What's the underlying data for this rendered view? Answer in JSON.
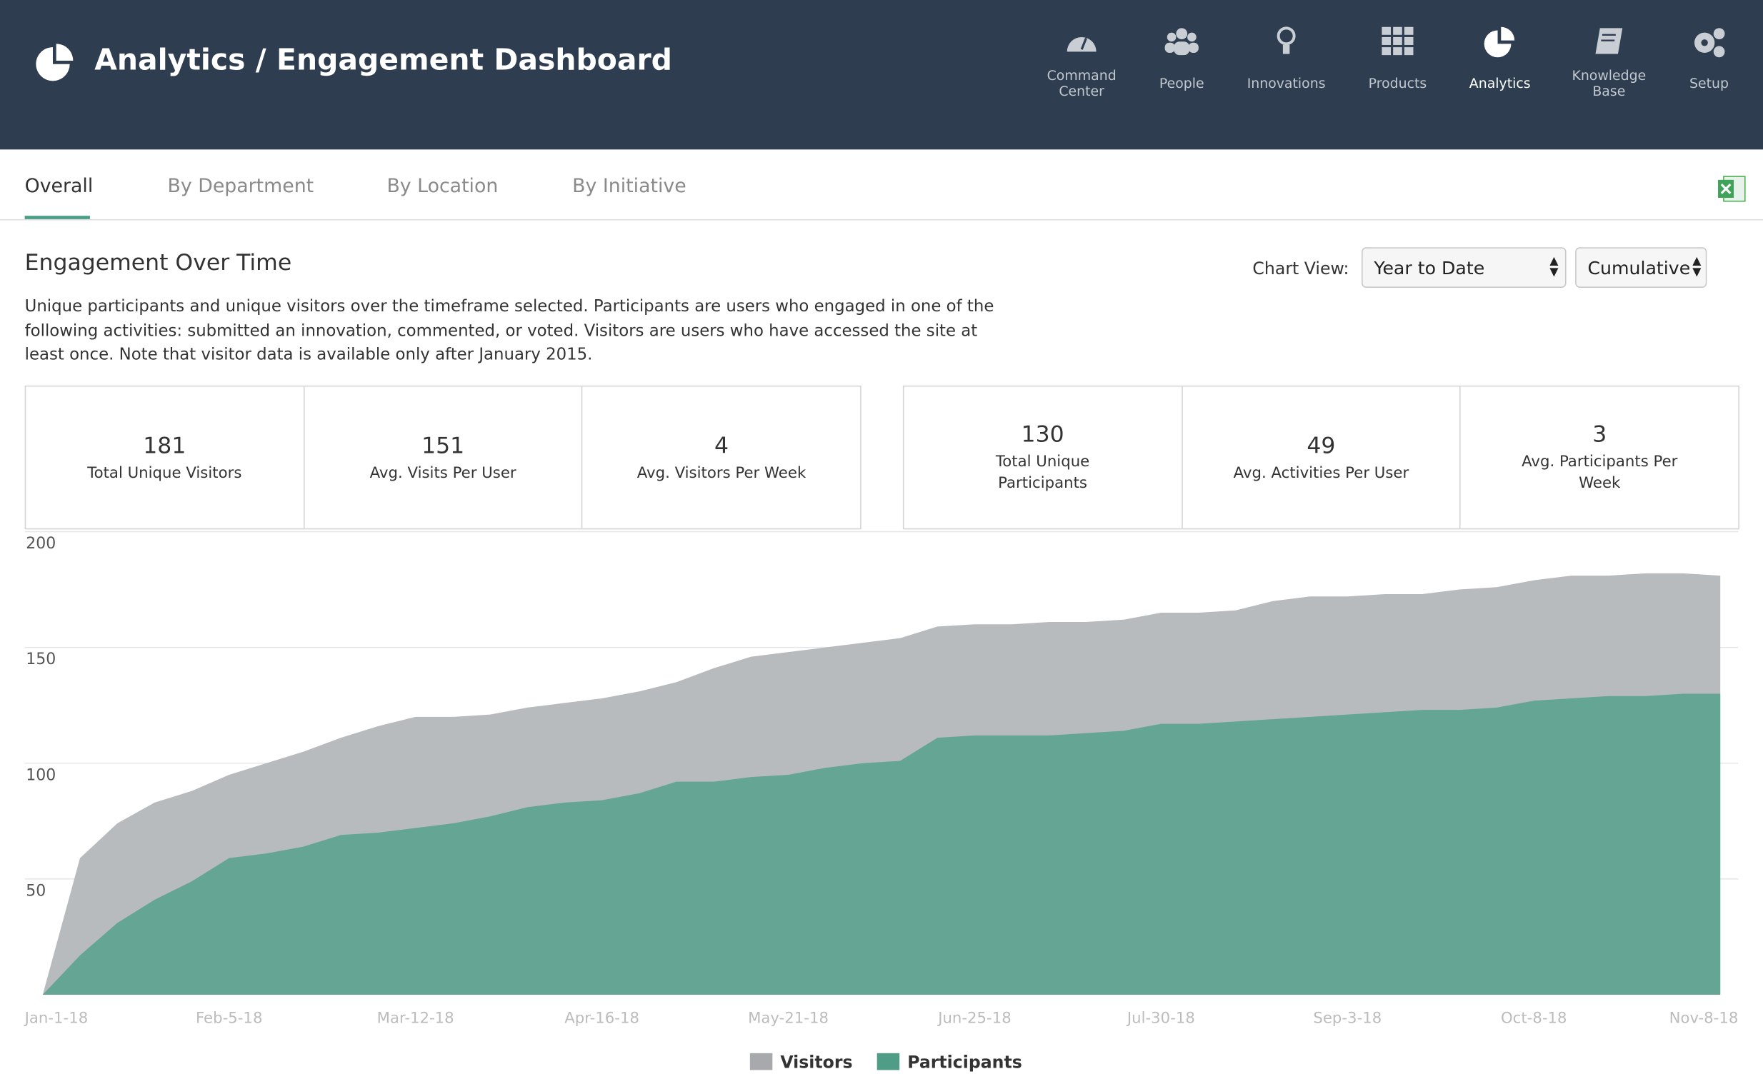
{
  "header": {
    "title": "Analytics / Engagement Dashboard",
    "nav": [
      {
        "label": "Command Center"
      },
      {
        "label": "People"
      },
      {
        "label": "Innovations"
      },
      {
        "label": "Products"
      },
      {
        "label": "Analytics"
      },
      {
        "label": "Knowledge Base"
      },
      {
        "label": "Setup"
      }
    ]
  },
  "tabs": [
    "Overall",
    "By Department",
    "By Location",
    "By Initiative"
  ],
  "section": {
    "title": "Engagement Over Time",
    "description": "Unique participants and unique visitors over the timeframe selected. Participants are users who engaged in one of the following activities: submitted an innovation, commented, or voted. Visitors are users who have accessed the site at least once. Note that visitor data is available only after January 2015.",
    "chart_view_label": "Chart View:",
    "range_select": "Year to Date",
    "mode_select": "Cumulative"
  },
  "stats": [
    [
      {
        "value": "181",
        "label": "Total Unique Visitors"
      },
      {
        "value": "151",
        "label": "Avg. Visits Per User"
      },
      {
        "value": "4",
        "label": "Avg. Visitors Per Week"
      }
    ],
    [
      {
        "value": "130",
        "label": "Total Unique Participants"
      },
      {
        "value": "49",
        "label": "Avg. Activities Per User"
      },
      {
        "value": "3",
        "label": "Avg. Participants Per Week"
      }
    ]
  ],
  "chart_data": {
    "type": "area",
    "categories": [
      "Jan-1-18",
      null,
      null,
      null,
      null,
      "Feb-5-18",
      null,
      null,
      null,
      null,
      "Mar-12-18",
      null,
      null,
      null,
      null,
      "Apr-16-18",
      null,
      null,
      null,
      null,
      "May-21-18",
      null,
      null,
      null,
      null,
      "Jun-25-18",
      null,
      null,
      null,
      null,
      "Jul-30-18",
      null,
      null,
      null,
      null,
      "Sep-3-18",
      null,
      null,
      null,
      null,
      "Oct-8-18",
      null,
      null,
      null,
      null,
      "Nov-8-18"
    ],
    "series": [
      {
        "name": "Visitors",
        "color": "#b8bbbe",
        "legend_color": "#a7a9ac",
        "values": [
          0,
          59,
          74,
          83,
          88,
          95,
          100,
          105,
          111,
          116,
          120,
          120,
          121,
          124,
          126,
          128,
          131,
          135,
          141,
          146,
          148,
          150,
          152,
          154,
          159,
          160,
          160,
          161,
          161,
          162,
          165,
          165,
          166,
          170,
          172,
          172,
          173,
          173,
          175,
          176,
          179,
          181,
          181,
          182,
          182,
          181
        ]
      },
      {
        "name": "Participants",
        "color": "#64a693",
        "legend_color": "#4f9d86",
        "values": [
          0,
          17,
          31,
          41,
          49,
          59,
          61,
          64,
          69,
          70,
          72,
          74,
          77,
          81,
          83,
          84,
          87,
          92,
          92,
          94,
          95,
          98,
          100,
          101,
          111,
          112,
          112,
          112,
          113,
          114,
          117,
          117,
          118,
          119,
          120,
          121,
          122,
          123,
          123,
          124,
          127,
          128,
          129,
          129,
          130,
          130
        ]
      }
    ],
    "ylim": [
      0,
      200
    ],
    "yticks": [
      50,
      100,
      150,
      200
    ],
    "grid": true
  }
}
